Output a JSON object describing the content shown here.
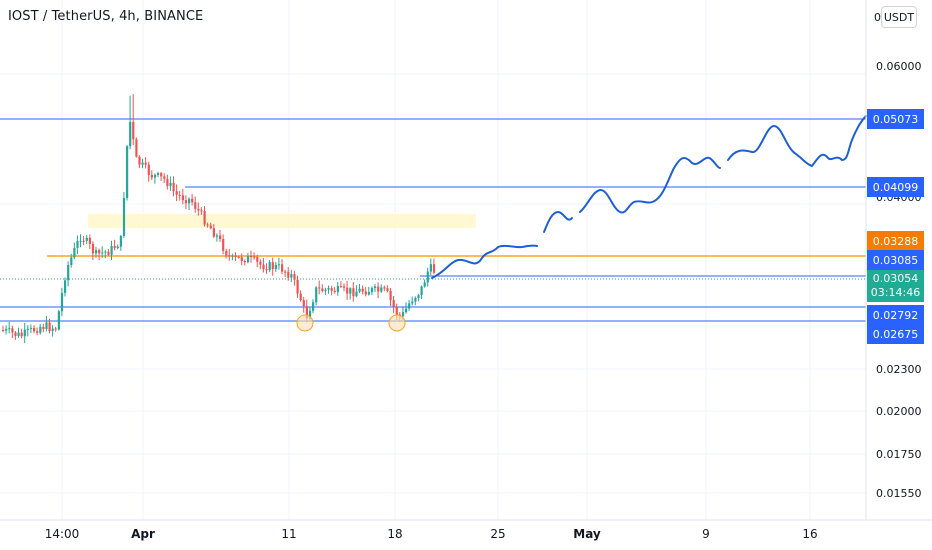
{
  "symbol": {
    "name": "IOST / TetherUS",
    "interval": "4h",
    "exchange": "BINANCE",
    "separator": ", "
  },
  "currency": {
    "prefix": "0",
    "label": "USDT"
  },
  "price_axis": {
    "ticks": [
      "0.06000",
      "0.04000",
      "0.02300",
      "0.02000",
      "0.01750",
      "0.01550"
    ]
  },
  "time_axis": {
    "ticks": [
      {
        "label": "14:00",
        "bold": false
      },
      {
        "label": "Apr",
        "bold": true
      },
      {
        "label": "11",
        "bold": false
      },
      {
        "label": "18",
        "bold": false
      },
      {
        "label": "25",
        "bold": false
      },
      {
        "label": "May",
        "bold": true
      },
      {
        "label": "9",
        "bold": false
      },
      {
        "label": "16",
        "bold": false
      }
    ]
  },
  "price_labels": [
    {
      "value": "0.05073",
      "color": "#2962ff"
    },
    {
      "value": "0.04099",
      "color": "#2962ff"
    },
    {
      "value": "0.03288",
      "color": "#f57c00"
    },
    {
      "value": "0.03085",
      "color": "#2962ff"
    },
    {
      "value": "0.02792",
      "color": "#2962ff"
    },
    {
      "value": "0.02675",
      "color": "#2962ff"
    }
  ],
  "current_price": {
    "value": "0.03054",
    "countdown": "03:14:46",
    "color": "#22ab94"
  },
  "colors": {
    "up": "#26a69a",
    "down": "#ef5350",
    "level_line": "#2962ff",
    "orange_line": "#f5a623",
    "projection": "#1e5fd8",
    "highlight_zone": "#fff6c8"
  }
}
